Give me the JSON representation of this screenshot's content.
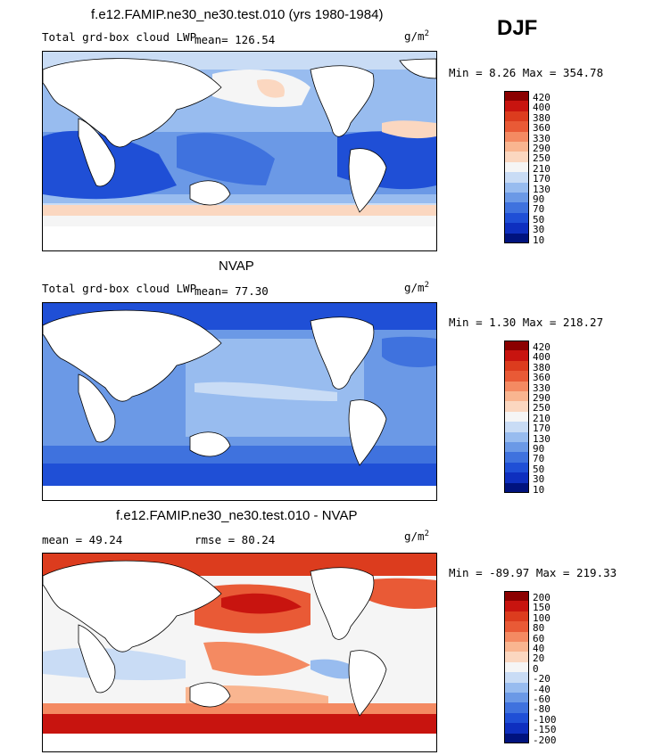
{
  "season": "DJF",
  "panels": [
    {
      "title": "f.e12.FAMIP.ne30_ne30.test.010 (yrs 1980-1984)",
      "left_label": "Total grd-box cloud LWP",
      "mean_label": "mean=  126.54",
      "rmse_label": "",
      "units": "g/m",
      "units_exp": "2",
      "minmax": "Min =   8.26 Max = 354.78",
      "levels": [
        "420",
        "400",
        "380",
        "360",
        "330",
        "290",
        "250",
        "210",
        "170",
        "130",
        "90",
        "70",
        "50",
        "30",
        "10"
      ]
    },
    {
      "title": "NVAP",
      "left_label": "Total grd-box cloud LWP",
      "mean_label": "mean=   77.30",
      "rmse_label": "",
      "units": "g/m",
      "units_exp": "2",
      "minmax": "Min =   1.30 Max = 218.27",
      "levels": [
        "420",
        "400",
        "380",
        "360",
        "330",
        "290",
        "250",
        "210",
        "170",
        "130",
        "90",
        "70",
        "50",
        "30",
        "10"
      ]
    },
    {
      "title": "f.e12.FAMIP.ne30_ne30.test.010 - NVAP",
      "left_label": "mean =   49.24",
      "mean_label": "",
      "rmse_label": "rmse =   80.24",
      "units": "g/m",
      "units_exp": "2",
      "minmax": "Min = -89.97 Max = 219.33",
      "levels": [
        "200",
        "150",
        "100",
        "80",
        "60",
        "40",
        "20",
        "0",
        "-20",
        "-40",
        "-60",
        "-80",
        "-100",
        "-150",
        "-200"
      ]
    }
  ],
  "colors": [
    "#8b0000",
    "#c8140f",
    "#dc3c1e",
    "#e95a36",
    "#f48a62",
    "#f9b590",
    "#fbd7c0",
    "#f5f5f5",
    "#c9dcf5",
    "#98bcef",
    "#6b99e6",
    "#3f72de",
    "#1f4fd6",
    "#0e2fbf",
    "#00137e"
  ]
}
